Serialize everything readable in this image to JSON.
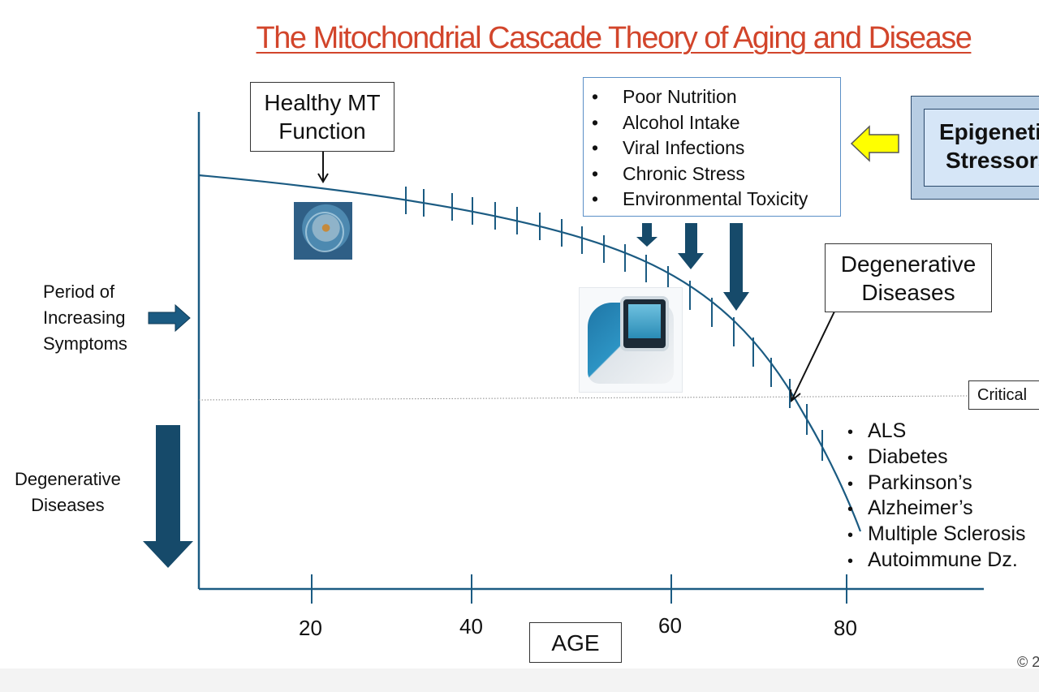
{
  "title": "The Mitochondrial Cascade Theory of Aging and Disease",
  "labels": {
    "healthy_line1": "Healthy MT",
    "healthy_line2": "Function",
    "degenerative_line1": "Degenerative",
    "degenerative_line2": "Diseases",
    "period_line1": "Period of",
    "period_line2": "Increasing",
    "period_line3": "Symptoms",
    "degen_side_line1": "Degenerative",
    "degen_side_line2": "Diseases",
    "epigenetic_line1": "Epigenetic",
    "epigenetic_line2": "Stressors",
    "critical": "Critical",
    "age": "AGE",
    "copyright": "© 2"
  },
  "stressors": [
    "Poor Nutrition",
    "Alcohol Intake",
    "Viral Infections",
    "Chronic Stress",
    "Environmental Toxicity"
  ],
  "diseases": [
    "ALS",
    "Diabetes",
    "Parkinson’s",
    "Alzheimer’s",
    "Multiple Sclerosis",
    "Autoimmune Dz."
  ],
  "x_axis": {
    "ticks": [
      "20",
      "40",
      "60",
      "80"
    ]
  },
  "colors": {
    "title": "#d2452b",
    "curve": "#1b5b82",
    "arrow": "#164a6a",
    "yellow_arrow": "#ffff00",
    "epigenetic_fill": "#d6e6f7"
  },
  "icons": {
    "bullet": "•",
    "cell": "cell-image",
    "analyzer": "analyzer-image"
  }
}
